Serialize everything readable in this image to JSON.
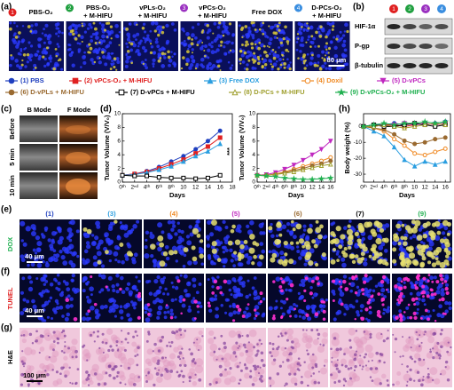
{
  "figure": {
    "panel_a": {
      "label": "(a)",
      "badge_colors": [
        "#e02020",
        "#20a040",
        "#9a30c0",
        "#3a8ee0"
      ],
      "images": [
        {
          "badge": "1",
          "caption": [
            "PBS-O₂"
          ]
        },
        {
          "badge": "2",
          "caption": [
            "PBS-O₂",
            "+ M-HIFU"
          ]
        },
        {
          "caption": [
            "vPLs-O₂",
            "+ M-HIFU"
          ]
        },
        {
          "badge": "3",
          "caption": [
            "vPCs-O₂",
            "+ M-HIFU"
          ]
        },
        {
          "caption": [
            "Free DOX"
          ]
        },
        {
          "badge": "4",
          "caption": [
            "D-PCs-O₂",
            "+ M-HIFU"
          ]
        }
      ],
      "scale_bar": "80 μm"
    },
    "panel_b": {
      "label": "(b)",
      "lanes": [
        "1",
        "2",
        "3",
        "4"
      ],
      "rows": [
        "HIF-1α",
        "P-gp",
        "β-tubulin"
      ]
    },
    "panel_c": {
      "label": "(c)",
      "columns": [
        "B Mode",
        "F Mode"
      ],
      "rows": [
        "Before",
        "5 min",
        "10 min"
      ]
    },
    "panel_e": {
      "label": "(e)",
      "stain": "DOX",
      "columns": [
        "(1)",
        "(3)",
        "(4)",
        "(5)",
        "(6)",
        "(7)",
        "(9)"
      ],
      "column_colors": [
        "#1f3fbf",
        "#2a9ee0",
        "#f08a24",
        "#c028c0",
        "#9a6a30",
        "#000000",
        "#20b050"
      ],
      "scale_bar": "40 μm"
    },
    "panel_f": {
      "label": "(f)",
      "stain": "TUNEL",
      "scale_bar": "40 μm"
    },
    "panel_g": {
      "label": "(g)",
      "stain": "H&E",
      "scale_bar": "100 μm"
    }
  },
  "chart_data": [
    {
      "type": "line",
      "label": "(d)",
      "xlabel": "Days",
      "ylabel": "Tumor Volume (V/V₀)",
      "annotation": "***",
      "x": [
        0,
        2,
        4,
        6,
        8,
        10,
        12,
        14,
        16
      ],
      "xlim": [
        0,
        18
      ],
      "xticks": [
        {
          "value": 0,
          "label": "0ᵗʰ"
        },
        {
          "value": 2,
          "label": "2ⁿᵈ"
        },
        {
          "value": 4,
          "label": "4ᵗʰ"
        },
        {
          "value": 6,
          "label": "6ᵗʰ"
        },
        {
          "value": 8,
          "label": "8ᵗʰ"
        },
        10,
        12,
        14,
        16,
        18
      ],
      "ylim": [
        0,
        10
      ],
      "yticks": [
        0,
        2,
        4,
        6,
        8,
        10
      ],
      "series": [
        {
          "name": "(1) PBS",
          "color": "#1f3fbf",
          "marker": "circle",
          "values": [
            1,
            1.2,
            1.6,
            2.2,
            3,
            3.8,
            4.8,
            6,
            7.5
          ]
        },
        {
          "name": "(2) vPCs-O₂ + M-HIFU",
          "color": "#e02020",
          "marker": "square",
          "values": [
            1,
            1.2,
            1.5,
            2,
            2.6,
            3.3,
            4.2,
            5.2,
            6.5
          ]
        },
        {
          "name": "(3) Free DOX",
          "color": "#2a9ee0",
          "marker": "triangle",
          "values": [
            1,
            1.1,
            1.4,
            1.8,
            2.3,
            3,
            3.8,
            4.5,
            5.6
          ]
        },
        {
          "name": "(7) D-vPCs + M-HIFU",
          "color": "#000000",
          "marker": "open-square",
          "values": [
            1,
            0.9,
            0.9,
            0.7,
            0.6,
            0.6,
            0.5,
            0.6,
            1
          ]
        }
      ]
    },
    {
      "type": "line",
      "xlabel": "Days",
      "ylabel": "Tumor Volume (V/V₀)",
      "x": [
        0,
        2,
        4,
        6,
        8,
        10,
        12,
        14,
        16
      ],
      "xlim": [
        0,
        17
      ],
      "xticks": [
        {
          "value": 0,
          "label": "0ᵗʰ"
        },
        {
          "value": 2,
          "label": "2ⁿᵈ"
        },
        {
          "value": 4,
          "label": "4ᵗʰ"
        },
        {
          "value": 6,
          "label": "6ᵗʰ"
        },
        {
          "value": 8,
          "label": "8ᵗʰ"
        },
        10,
        12,
        14,
        16
      ],
      "ylim": [
        0,
        10
      ],
      "yticks": [
        0,
        2,
        4,
        6,
        8,
        10
      ],
      "series": [
        {
          "name": "(4) Doxil",
          "color": "#f08a24",
          "marker": "open-circle",
          "values": [
            1,
            1,
            1.2,
            1.5,
            1.9,
            2.3,
            2.7,
            3.1,
            3.6
          ]
        },
        {
          "name": "(5) D-vPCs",
          "color": "#c028c0",
          "marker": "down-triangle",
          "values": [
            1,
            1.1,
            1.4,
            1.9,
            2.5,
            3.2,
            4,
            4.8,
            6
          ]
        },
        {
          "name": "(6) D-vPLs + M-HIFU",
          "color": "#9a6a30",
          "marker": "circle",
          "values": [
            1,
            1,
            1.1,
            1.4,
            1.7,
            2,
            2.4,
            2.7,
            3.1
          ]
        },
        {
          "name": "(8) D-PCs + M-HIFU",
          "color": "#a0a030",
          "marker": "open-triangle",
          "values": [
            1,
            1,
            1.1,
            1.3,
            1.5,
            1.8,
            2.1,
            2.4,
            2.6
          ]
        },
        {
          "name": "(9) D-vPCs-O₂ + M-HIFU",
          "color": "#20b050",
          "marker": "star",
          "values": [
            1,
            0.9,
            0.8,
            0.6,
            0.5,
            0.4,
            0.4,
            0.5,
            0.6
          ]
        }
      ]
    },
    {
      "type": "line",
      "label": "(h)",
      "xlabel": "Days",
      "ylabel": "Body weight (%)",
      "x": [
        0,
        2,
        4,
        6,
        8,
        10,
        12,
        14,
        16
      ],
      "xlim": [
        0,
        17
      ],
      "xticks": [
        {
          "value": 0,
          "label": "0ᵗʰ"
        },
        {
          "value": 2,
          "label": "2ⁿᵈ"
        },
        {
          "value": 4,
          "label": "4ᵗʰ"
        },
        {
          "value": 6,
          "label": "6ᵗʰ"
        },
        {
          "value": 8,
          "label": "8ᵗʰ"
        },
        10,
        12,
        14,
        16
      ],
      "ylim": [
        -35,
        8
      ],
      "yticks": [
        -30,
        -20,
        -10,
        0
      ],
      "series": [
        {
          "name": "(1) PBS",
          "color": "#1f3fbf",
          "marker": "circle",
          "values": [
            0,
            1,
            1,
            2,
            1,
            2,
            1,
            2,
            3
          ]
        },
        {
          "name": "(2) vPCs-O₂ + M-HIFU",
          "color": "#e02020",
          "marker": "square",
          "values": [
            0,
            0,
            1,
            1,
            0,
            1,
            2,
            1,
            2
          ]
        },
        {
          "name": "(3) Free DOX",
          "color": "#2a9ee0",
          "marker": "triangle",
          "values": [
            0,
            -3,
            -6,
            -13,
            -21,
            -25,
            -22,
            -24,
            -22
          ]
        },
        {
          "name": "(4) Doxil",
          "color": "#f08a24",
          "marker": "open-circle",
          "values": [
            0,
            -1,
            -3,
            -8,
            -12,
            -17,
            -18,
            -16,
            -14
          ]
        },
        {
          "name": "(5) D-vPCs",
          "color": "#c028c0",
          "marker": "down-triangle",
          "values": [
            0,
            1,
            0,
            1,
            2,
            1,
            2,
            1,
            2
          ]
        },
        {
          "name": "(6) D-vPLs + M-HIFU",
          "color": "#9a6a30",
          "marker": "circle",
          "values": [
            0,
            -1,
            -2,
            -5,
            -9,
            -11,
            -10,
            -8,
            -7
          ]
        },
        {
          "name": "(7) D-vPCs + M-HIFU",
          "color": "#000000",
          "marker": "open-square",
          "values": [
            0,
            1,
            0,
            0,
            1,
            2,
            1,
            0,
            1
          ]
        },
        {
          "name": "(8) D-PCs + M-HIFU",
          "color": "#a0a030",
          "marker": "open-triangle",
          "values": [
            0,
            0,
            1,
            0,
            -1,
            0,
            1,
            2,
            1
          ]
        },
        {
          "name": "(9) D-vPCs-O₂ + M-HIFU",
          "color": "#20b050",
          "marker": "star",
          "values": [
            0,
            1,
            2,
            1,
            2,
            2,
            3,
            2,
            3
          ]
        }
      ]
    }
  ]
}
